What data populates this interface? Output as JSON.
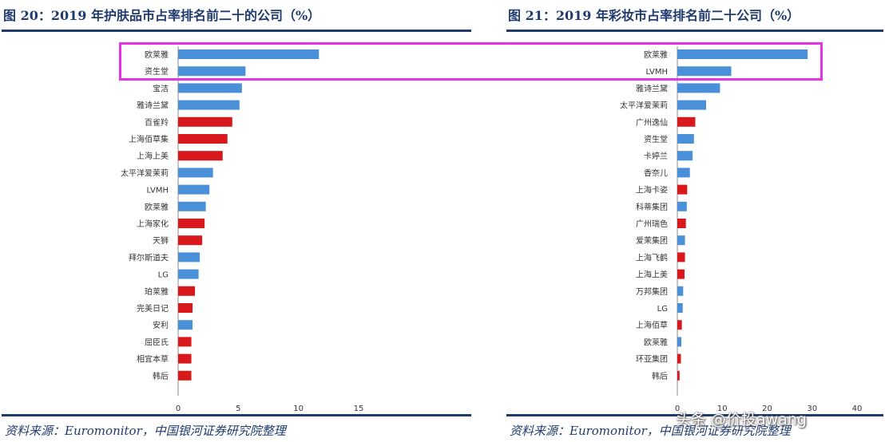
{
  "colors": {
    "blue": "#4a90d9",
    "red": "#d9181c",
    "title": "#1f3a6d",
    "highlight": "#e633e6",
    "axis": "#8a8a8a"
  },
  "watermark": "头条 @价投awang",
  "chart_data": [
    {
      "type": "bar",
      "orientation": "horizontal",
      "title": "图 20：2019 年护肤品市占率排名前二十的公司（%）",
      "source": "资料来源：Euromonitor，中国银河证券研究院整理",
      "categories": [
        "欧莱雅",
        "资生堂",
        "宝洁",
        "雅诗兰黛",
        "百雀羚",
        "上海佰草集",
        "上海上美",
        "太平洋爱茉莉",
        "LVMH",
        "欧莱雅",
        "上海家化",
        "天狮",
        "拜尔斯道夫",
        "LG",
        "珀莱雅",
        "完美日记",
        "安利",
        "屈臣氏",
        "相宜本草",
        "韩后"
      ],
      "values": [
        11.7,
        5.6,
        5.3,
        5.1,
        4.5,
        4.1,
        3.7,
        2.9,
        2.6,
        2.3,
        2.2,
        2.0,
        1.8,
        1.7,
        1.4,
        1.2,
        1.2,
        1.1,
        1.1,
        1.1
      ],
      "colors": [
        "blue",
        "blue",
        "blue",
        "blue",
        "red",
        "red",
        "red",
        "blue",
        "blue",
        "blue",
        "red",
        "red",
        "blue",
        "blue",
        "red",
        "red",
        "blue",
        "red",
        "red",
        "red"
      ],
      "xlim": [
        0,
        15
      ],
      "xticks": [
        0,
        5,
        10,
        15
      ]
    },
    {
      "type": "bar",
      "orientation": "horizontal",
      "title": "图 21：2019 年彩妆市占率排名前二十公司（%）",
      "source": "资料来源：Euromonitor，中国银河证券研究院整理",
      "categories": [
        "欧莱雅",
        "LVMH",
        "雅诗兰黛",
        "太平洋爱茉莉",
        "广州逸仙",
        "资生堂",
        "卡婷兰",
        "香奈儿",
        "上海卡姿",
        "科蒂集团",
        "广州瑞色",
        "爱茉集团",
        "上海飞鹤",
        "上海上美",
        "万邦集团",
        "LG",
        "上海佰草",
        "欧莱雅",
        "环亚集团",
        "韩后"
      ],
      "values": [
        29.0,
        12.0,
        9.5,
        6.4,
        4.0,
        3.7,
        3.4,
        2.8,
        2.2,
        2.1,
        1.9,
        1.7,
        1.7,
        1.6,
        1.3,
        1.2,
        1.0,
        0.9,
        0.8,
        0.5
      ],
      "colors": [
        "blue",
        "blue",
        "blue",
        "blue",
        "red",
        "blue",
        "blue",
        "blue",
        "red",
        "blue",
        "red",
        "blue",
        "red",
        "red",
        "blue",
        "blue",
        "red",
        "blue",
        "red",
        "red"
      ],
      "xlim": [
        0,
        40
      ],
      "xticks": [
        0,
        10,
        20,
        30,
        40
      ]
    }
  ]
}
